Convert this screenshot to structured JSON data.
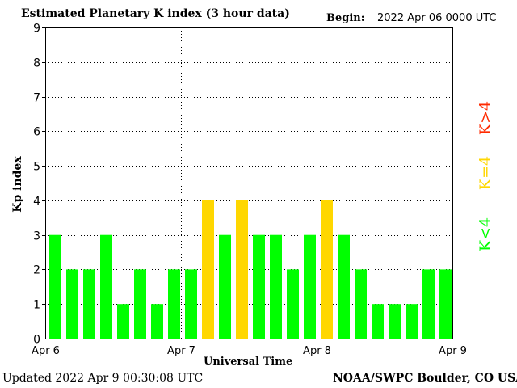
{
  "header": {
    "title": "Estimated Planetary K index (3 hour data)",
    "begin_label": "Begin:",
    "begin_value": "2022 Apr 06 0000 UTC"
  },
  "footer": {
    "updated": "Updated 2022 Apr  9 00:30:08 UTC",
    "credit": "NOAA/SWPC Boulder, CO USA"
  },
  "legend": {
    "below": "K<4",
    "equal": "K=4",
    "above": "K>4"
  },
  "colors": {
    "below": "#00ff00",
    "equal": "#ffd700",
    "above": "#ff2a00",
    "grid": "#000000"
  },
  "chart_data": {
    "type": "bar",
    "xlabel": "Universal Time",
    "ylabel": "Kp index",
    "ylim": [
      0,
      9
    ],
    "yticks": [
      "0",
      "1",
      "2",
      "3",
      "4",
      "5",
      "6",
      "7",
      "8",
      "9"
    ],
    "xticks": [
      "Apr 6",
      "Apr 7",
      "Apr 8",
      "Apr 9"
    ],
    "bins_per_day": 8,
    "grid": "dotted",
    "values": [
      3,
      2,
      2,
      3,
      1,
      2,
      1,
      2,
      2,
      4,
      3,
      4,
      3,
      3,
      2,
      3,
      4,
      3,
      2,
      1,
      1,
      1,
      2,
      2
    ]
  }
}
